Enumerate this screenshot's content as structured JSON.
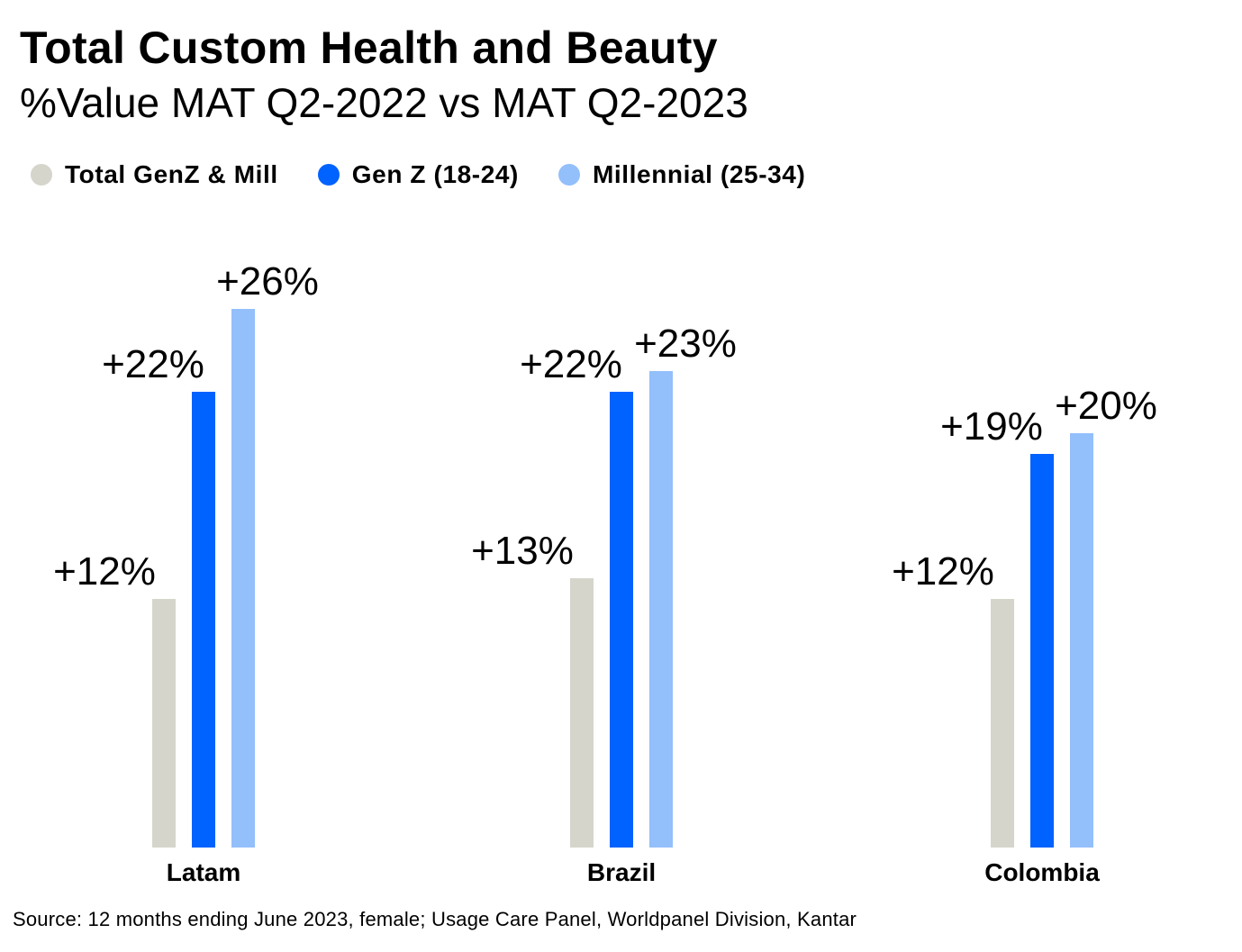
{
  "header": {
    "title": "Total Custom Health and Beauty",
    "subtitle": "%Value MAT Q2-2022 vs MAT Q2-2023"
  },
  "legend": {
    "items": [
      {
        "label": "Total GenZ & Mill",
        "color": "#d6d5cc"
      },
      {
        "label": "Gen Z (18-24)",
        "color": "#0062ff"
      },
      {
        "label": "Millennial (25-34)",
        "color": "#93bffb"
      }
    ]
  },
  "chart_data": {
    "type": "bar",
    "title": "Total Custom Health and Beauty",
    "subtitle": "%Value MAT Q2-2022 vs MAT Q2-2023",
    "categories": [
      "Latam",
      "Brazil",
      "Colombia"
    ],
    "series": [
      {
        "name": "Total GenZ & Mill",
        "color": "#d6d5cc",
        "values": [
          12,
          13,
          12
        ],
        "labels": [
          "+12%",
          "+13%",
          "+12%"
        ]
      },
      {
        "name": "Gen Z (18-24)",
        "color": "#0062ff",
        "values": [
          22,
          22,
          19
        ],
        "labels": [
          "+22%",
          "+22%",
          "+19%"
        ]
      },
      {
        "name": "Millennial (25-34)",
        "color": "#93bffb",
        "values": [
          26,
          23,
          20
        ],
        "labels": [
          "+26%",
          "+23%",
          "+20%"
        ]
      }
    ],
    "ylim": [
      0,
      26
    ],
    "grid": false,
    "legend_position": "top-left"
  },
  "footer": {
    "source": "Source: 12 months ending June 2023, female; Usage Care Panel, Worldpanel Division, Kantar"
  }
}
